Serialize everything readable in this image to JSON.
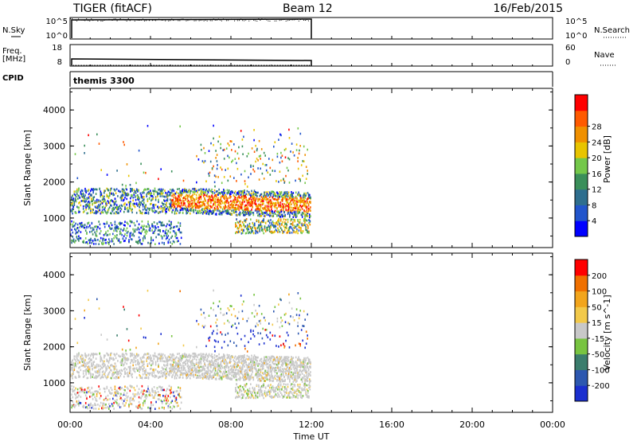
{
  "header": {
    "title": "TIGER (fitACF)",
    "beam": "Beam 12",
    "date": "16/Feb/2015"
  },
  "nsky_panel": {
    "left_label": "N.Sky",
    "left_ticks": [
      "10^5",
      "10^0"
    ],
    "right_label": "N.Search",
    "right_ticks": [
      "10^5",
      "10^0"
    ]
  },
  "freq_panel": {
    "left_label_line1": "Freq.",
    "left_label_line2": "[MHz]",
    "left_ticks": [
      "18",
      "8"
    ],
    "right_label": "Nave",
    "right_ticks": [
      "60",
      "0"
    ]
  },
  "cpid": {
    "label": "CPID",
    "program": "themis 3300"
  },
  "x_axis": {
    "label": "Time UT",
    "ticks": [
      "00:00",
      "04:00",
      "08:00",
      "12:00",
      "16:00",
      "20:00",
      "00:00"
    ]
  },
  "chart_data": [
    {
      "type": "heatmap",
      "quantity": "Power",
      "ylabel": "Slant Range [km]",
      "yticks": [
        1000,
        2000,
        3000,
        4000
      ],
      "ylim": [
        180,
        4600
      ],
      "x": [
        0,
        24
      ],
      "xlabel": "Time UT",
      "colorbar": {
        "label": "Power [dB]",
        "ticks": [
          "4",
          "8",
          "12",
          "16",
          "20",
          "24",
          "28"
        ],
        "colors": [
          "#0000ff",
          "#2255cc",
          "#2e6e8e",
          "#3a8f5a",
          "#74c84a",
          "#e8c400",
          "#f09000",
          "#ff5a00",
          "#ff0000"
        ]
      },
      "echo_regions": [
        {
          "t": [
            0,
            12
          ],
          "range_km": [
            1150,
            1900
          ],
          "power_db": "8-20"
        },
        {
          "t": [
            0,
            5.5
          ],
          "range_km": [
            300,
            900
          ],
          "power_db": "4-16"
        },
        {
          "t": [
            5,
            12
          ],
          "range_km": [
            1200,
            1700
          ],
          "power_db": "20-30"
        },
        {
          "t": [
            8.2,
            12
          ],
          "range_km": [
            600,
            1000
          ],
          "power_db": "8-20"
        },
        {
          "t": [
            6.5,
            11.8
          ],
          "range_km": [
            2000,
            3300
          ],
          "power_db": "8-28"
        }
      ]
    },
    {
      "type": "heatmap",
      "quantity": "Velocity",
      "ylabel": "Slant Range [km]",
      "yticks": [
        1000,
        2000,
        3000,
        4000
      ],
      "ylim": [
        180,
        4600
      ],
      "x": [
        0,
        24
      ],
      "xlabel": "Time UT",
      "colorbar": {
        "label": "Velocity [m s^-1]",
        "ticks": [
          "200",
          "100",
          "50",
          "15",
          "-15",
          "-50",
          "-100",
          "-200"
        ],
        "colors": [
          "#1b2fcf",
          "#2d58b0",
          "#3b7d6d",
          "#78c441",
          "#c8c8c8",
          "#f2c94a",
          "#f2a51c",
          "#f07000",
          "#ff0000"
        ]
      },
      "echo_regions": [
        {
          "t": [
            0,
            12
          ],
          "range_km": [
            1150,
            1900
          ],
          "velocity": "ground scatter (-15 to 15)"
        },
        {
          "t": [
            0,
            5.5
          ],
          "range_km": [
            300,
            900
          ],
          "velocity": "-50 to 15"
        },
        {
          "t": [
            6.5,
            9.5
          ],
          "range_km": [
            2200,
            2500
          ],
          "velocity": "100 to 200"
        },
        {
          "t": [
            9.5,
            12
          ],
          "range_km": [
            1900,
            2400
          ],
          "velocity": "-200 to 200"
        }
      ]
    }
  ]
}
